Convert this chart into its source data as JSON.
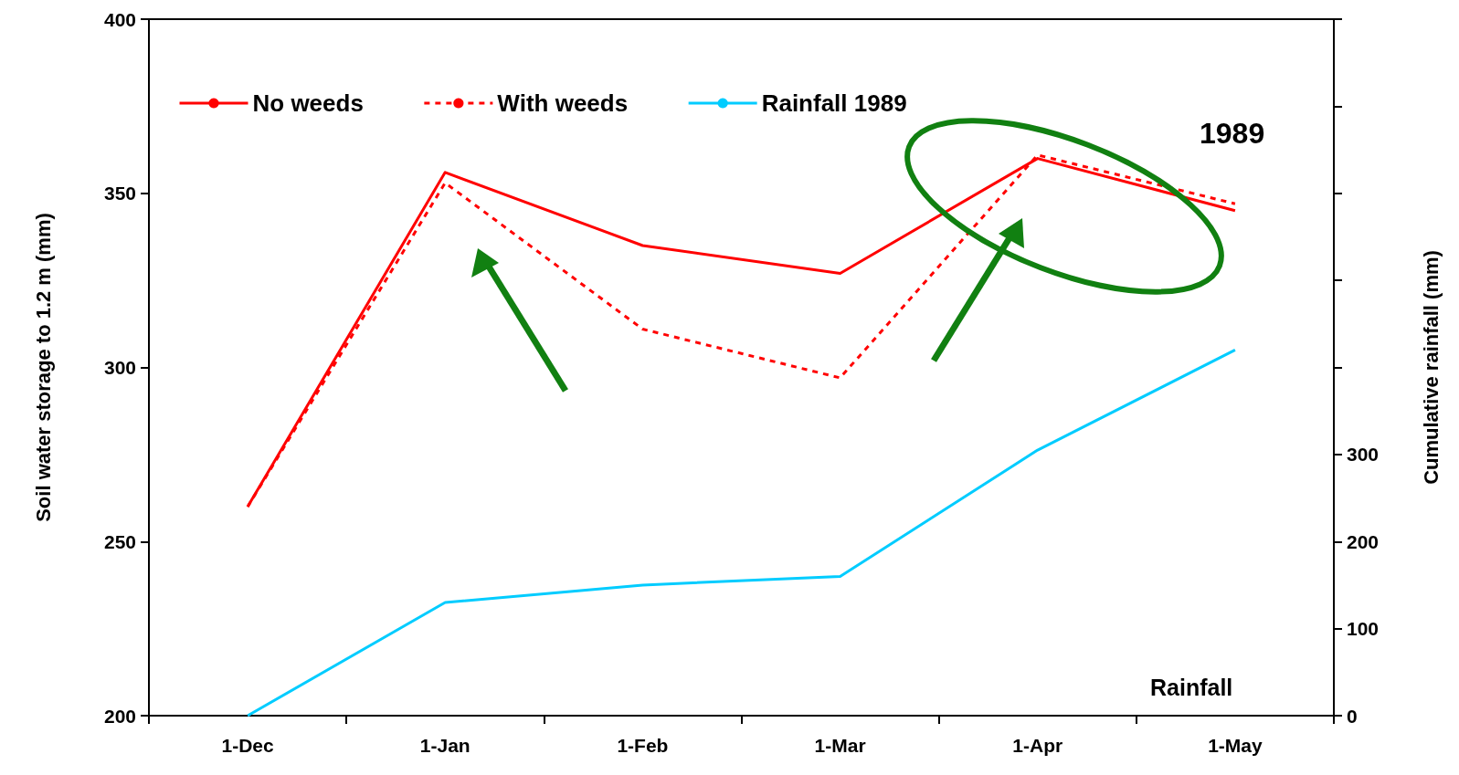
{
  "chart_data": {
    "type": "line",
    "ylabel": "Soil water storage to 1.2 m (mm)",
    "y2label": "Cumulative rainfall (mm)",
    "categories": [
      "1-Dec",
      "1-Jan",
      "1-Feb",
      "1-Mar",
      "1-Apr",
      "1-May"
    ],
    "series": [
      {
        "name": "No weeds",
        "color": "#ff0000",
        "line_style": "solid",
        "values": [
          260,
          356,
          335,
          327,
          360,
          345
        ]
      },
      {
        "name": "With weeds",
        "color": "#ff0000",
        "line_style": "dashed",
        "values": [
          260,
          353,
          311,
          297,
          361,
          347
        ]
      },
      {
        "name": "Rainfall 1989",
        "color": "#00ccff",
        "line_style": "solid",
        "axis": "y2",
        "values": [
          0,
          130,
          150,
          160,
          305,
          420
        ]
      }
    ],
    "ylim": [
      200,
      400
    ],
    "yticks": [
      200,
      250,
      300,
      350,
      400
    ],
    "y2lim": [
      0,
      800
    ],
    "y2ticks": [
      0,
      100,
      200,
      300,
      {
        "value": 400,
        "label": null
      },
      {
        "value": 500,
        "label": null
      },
      {
        "value": 600,
        "label": null
      },
      {
        "value": 700,
        "label": null
      },
      {
        "value": 800,
        "label": null
      }
    ],
    "annotations": [
      "1989",
      "Rainfall"
    ],
    "grid": false,
    "legend": "top",
    "marker": "none"
  }
}
